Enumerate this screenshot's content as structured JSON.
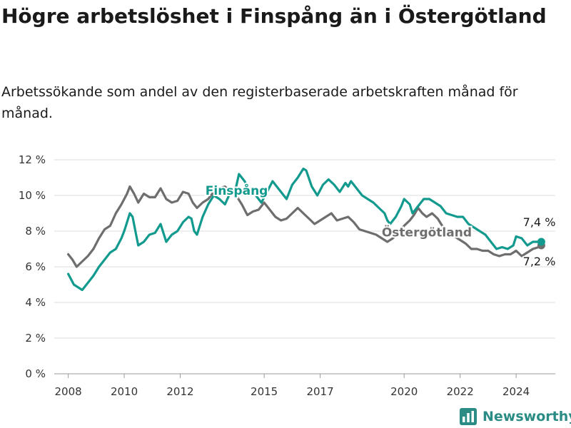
{
  "page": {
    "title": "Högre arbetslöshet i Finspång än i Östergötland",
    "subtitle": "Arbetssökande som andel av den registerbaserade arbetskraften månad för månad.",
    "brand": "Newsworthy",
    "brand_icon": "bar-chart-logo-icon"
  },
  "colors": {
    "finspang": "#139a8e",
    "ostergotland": "#6e6e6e",
    "grid": "#dddddd",
    "brand": "#2a8c84"
  },
  "chart_data": {
    "type": "line",
    "title": "Högre arbetslöshet i Finspång än i Östergötland",
    "subtitle": "Arbetssökande som andel av den registerbaserade arbetskraften månad för månad.",
    "xlabel": "",
    "ylabel": "",
    "ylim": [
      0,
      12
    ],
    "xlim": [
      2007.5,
      2025.4
    ],
    "yticks": [
      0,
      2,
      4,
      6,
      8,
      10,
      12
    ],
    "ytick_labels": [
      "0 %",
      "2 %",
      "4 %",
      "6 %",
      "8 %",
      "10 %",
      "12 %"
    ],
    "xticks": [
      2008,
      2010,
      2012,
      2015,
      2017,
      2020,
      2022,
      2024
    ],
    "xtick_labels": [
      "2008",
      "2010",
      "2012",
      "2015",
      "2017",
      "2020",
      "2022",
      "2024"
    ],
    "grid": true,
    "legend": "inline labels on lines",
    "series": [
      {
        "name": "Finspång",
        "color": "#139a8e",
        "end_label": "7,4 %",
        "points": [
          [
            2008.0,
            5.6
          ],
          [
            2008.2,
            5.0
          ],
          [
            2008.4,
            4.8
          ],
          [
            2008.5,
            4.7
          ],
          [
            2008.7,
            5.1
          ],
          [
            2008.9,
            5.5
          ],
          [
            2009.1,
            6.0
          ],
          [
            2009.3,
            6.4
          ],
          [
            2009.5,
            6.8
          ],
          [
            2009.7,
            7.0
          ],
          [
            2009.9,
            7.6
          ],
          [
            2010.0,
            8.0
          ],
          [
            2010.1,
            8.5
          ],
          [
            2010.2,
            9.0
          ],
          [
            2010.3,
            8.8
          ],
          [
            2010.4,
            8.0
          ],
          [
            2010.5,
            7.2
          ],
          [
            2010.7,
            7.4
          ],
          [
            2010.9,
            7.8
          ],
          [
            2011.1,
            7.9
          ],
          [
            2011.3,
            8.4
          ],
          [
            2011.5,
            7.4
          ],
          [
            2011.7,
            7.8
          ],
          [
            2011.9,
            8.0
          ],
          [
            2012.1,
            8.5
          ],
          [
            2012.3,
            8.8
          ],
          [
            2012.4,
            8.7
          ],
          [
            2012.5,
            8.0
          ],
          [
            2012.6,
            7.8
          ],
          [
            2012.8,
            8.8
          ],
          [
            2013.0,
            9.5
          ],
          [
            2013.2,
            10.0
          ],
          [
            2013.4,
            9.8
          ],
          [
            2013.6,
            9.5
          ],
          [
            2013.8,
            10.2
          ],
          [
            2014.0,
            10.5
          ],
          [
            2014.1,
            11.2
          ],
          [
            2014.3,
            10.8
          ],
          [
            2014.5,
            10.2
          ],
          [
            2014.7,
            10.0
          ],
          [
            2014.9,
            9.6
          ],
          [
            2015.1,
            10.2
          ],
          [
            2015.3,
            10.8
          ],
          [
            2015.5,
            10.4
          ],
          [
            2015.7,
            10.0
          ],
          [
            2015.8,
            9.8
          ],
          [
            2016.0,
            10.6
          ],
          [
            2016.2,
            11.0
          ],
          [
            2016.4,
            11.5
          ],
          [
            2016.5,
            11.4
          ],
          [
            2016.7,
            10.5
          ],
          [
            2016.9,
            10.0
          ],
          [
            2017.1,
            10.6
          ],
          [
            2017.3,
            10.9
          ],
          [
            2017.5,
            10.6
          ],
          [
            2017.7,
            10.2
          ],
          [
            2017.9,
            10.7
          ],
          [
            2018.0,
            10.5
          ],
          [
            2018.1,
            10.8
          ],
          [
            2018.3,
            10.4
          ],
          [
            2018.5,
            10.0
          ],
          [
            2018.7,
            9.8
          ],
          [
            2018.9,
            9.6
          ],
          [
            2019.1,
            9.3
          ],
          [
            2019.3,
            9.0
          ],
          [
            2019.4,
            8.6
          ],
          [
            2019.5,
            8.4
          ],
          [
            2019.7,
            8.8
          ],
          [
            2019.9,
            9.4
          ],
          [
            2020.0,
            9.8
          ],
          [
            2020.2,
            9.5
          ],
          [
            2020.3,
            9.0
          ],
          [
            2020.5,
            9.4
          ],
          [
            2020.7,
            9.8
          ],
          [
            2020.9,
            9.8
          ],
          [
            2021.1,
            9.6
          ],
          [
            2021.3,
            9.4
          ],
          [
            2021.5,
            9.0
          ],
          [
            2021.7,
            8.9
          ],
          [
            2021.9,
            8.8
          ],
          [
            2022.1,
            8.8
          ],
          [
            2022.3,
            8.4
          ],
          [
            2022.5,
            8.2
          ],
          [
            2022.7,
            8.0
          ],
          [
            2022.9,
            7.8
          ],
          [
            2023.1,
            7.4
          ],
          [
            2023.3,
            7.0
          ],
          [
            2023.5,
            7.1
          ],
          [
            2023.7,
            7.0
          ],
          [
            2023.9,
            7.2
          ],
          [
            2024.0,
            7.7
          ],
          [
            2024.2,
            7.6
          ],
          [
            2024.4,
            7.2
          ],
          [
            2024.6,
            7.4
          ],
          [
            2024.8,
            7.4
          ],
          [
            2024.9,
            7.4
          ]
        ]
      },
      {
        "name": "Östergötland",
        "color": "#6e6e6e",
        "end_label": "7,2 %",
        "points": [
          [
            2008.0,
            6.7
          ],
          [
            2008.15,
            6.4
          ],
          [
            2008.3,
            6.0
          ],
          [
            2008.5,
            6.3
          ],
          [
            2008.7,
            6.6
          ],
          [
            2008.9,
            7.0
          ],
          [
            2009.1,
            7.6
          ],
          [
            2009.3,
            8.1
          ],
          [
            2009.5,
            8.3
          ],
          [
            2009.7,
            9.0
          ],
          [
            2009.9,
            9.5
          ],
          [
            2010.1,
            10.1
          ],
          [
            2010.2,
            10.5
          ],
          [
            2010.35,
            10.1
          ],
          [
            2010.5,
            9.6
          ],
          [
            2010.7,
            10.1
          ],
          [
            2010.9,
            9.9
          ],
          [
            2011.1,
            9.9
          ],
          [
            2011.3,
            10.4
          ],
          [
            2011.5,
            9.8
          ],
          [
            2011.7,
            9.6
          ],
          [
            2011.9,
            9.7
          ],
          [
            2012.1,
            10.2
          ],
          [
            2012.3,
            10.1
          ],
          [
            2012.45,
            9.6
          ],
          [
            2012.6,
            9.3
          ],
          [
            2012.8,
            9.6
          ],
          [
            2013.0,
            9.8
          ],
          [
            2013.2,
            10.2
          ],
          [
            2013.4,
            10.4
          ],
          [
            2013.6,
            10.5
          ],
          [
            2013.8,
            10.2
          ],
          [
            2014.0,
            10.0
          ],
          [
            2014.2,
            9.5
          ],
          [
            2014.4,
            8.9
          ],
          [
            2014.6,
            9.1
          ],
          [
            2014.8,
            9.2
          ],
          [
            2015.0,
            9.6
          ],
          [
            2015.2,
            9.2
          ],
          [
            2015.4,
            8.8
          ],
          [
            2015.6,
            8.6
          ],
          [
            2015.8,
            8.7
          ],
          [
            2016.0,
            9.0
          ],
          [
            2016.2,
            9.3
          ],
          [
            2016.4,
            9.0
          ],
          [
            2016.6,
            8.7
          ],
          [
            2016.8,
            8.4
          ],
          [
            2017.0,
            8.6
          ],
          [
            2017.2,
            8.8
          ],
          [
            2017.4,
            9.0
          ],
          [
            2017.6,
            8.6
          ],
          [
            2017.8,
            8.7
          ],
          [
            2018.0,
            8.8
          ],
          [
            2018.2,
            8.5
          ],
          [
            2018.4,
            8.1
          ],
          [
            2018.6,
            8.0
          ],
          [
            2018.8,
            7.9
          ],
          [
            2019.0,
            7.8
          ],
          [
            2019.2,
            7.6
          ],
          [
            2019.4,
            7.4
          ],
          [
            2019.6,
            7.6
          ],
          [
            2019.8,
            7.9
          ],
          [
            2020.0,
            8.3
          ],
          [
            2020.2,
            8.6
          ],
          [
            2020.35,
            8.9
          ],
          [
            2020.5,
            9.3
          ],
          [
            2020.65,
            9.0
          ],
          [
            2020.8,
            8.8
          ],
          [
            2021.0,
            9.0
          ],
          [
            2021.2,
            8.7
          ],
          [
            2021.4,
            8.2
          ],
          [
            2021.6,
            7.9
          ],
          [
            2021.8,
            7.7
          ],
          [
            2022.0,
            7.5
          ],
          [
            2022.2,
            7.3
          ],
          [
            2022.4,
            7.0
          ],
          [
            2022.6,
            7.0
          ],
          [
            2022.8,
            6.9
          ],
          [
            2023.0,
            6.9
          ],
          [
            2023.2,
            6.7
          ],
          [
            2023.4,
            6.6
          ],
          [
            2023.6,
            6.7
          ],
          [
            2023.8,
            6.7
          ],
          [
            2024.0,
            6.9
          ],
          [
            2024.2,
            6.6
          ],
          [
            2024.4,
            6.8
          ],
          [
            2024.6,
            7.0
          ],
          [
            2024.8,
            7.1
          ],
          [
            2024.9,
            7.2
          ]
        ]
      }
    ],
    "annotations": [
      {
        "text": "Finspång",
        "series": "Finspång",
        "at": [
          2012.9,
          10.05
        ]
      },
      {
        "text": "Östergötland",
        "series": "Östergötland",
        "at": [
          2019.2,
          7.7
        ]
      }
    ]
  }
}
